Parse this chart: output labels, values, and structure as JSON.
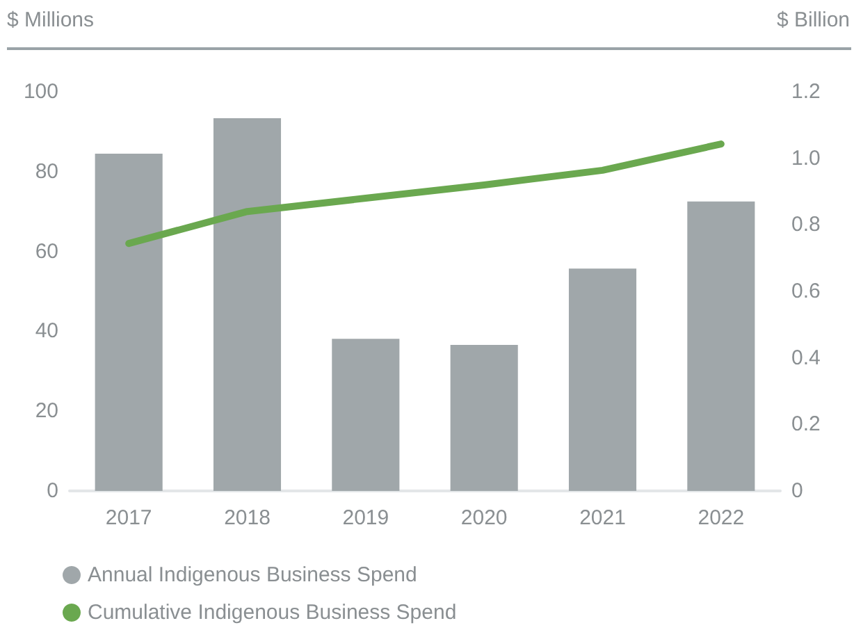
{
  "chart_data": {
    "type": "bar",
    "ylabel": "$ Millions",
    "y2label": "$ Billion",
    "categories": [
      "2017",
      "2018",
      "2019",
      "2020",
      "2021",
      "2022"
    ],
    "series": [
      {
        "name": "Annual Indigenous Business Spend",
        "color": "#a0a7aa",
        "values": [
          84.5,
          93.4,
          38.1,
          36.6,
          55.7,
          72.5
        ]
      },
      {
        "name": "Cumulative Indigenous Business Spend",
        "type": "line",
        "axis": "y2",
        "color": "#6aa84f",
        "values": [
          0.744,
          0.84,
          0.88,
          0.92,
          0.964,
          1.043
        ]
      }
    ],
    "ylim": [
      0,
      100
    ],
    "yticks": [
      0,
      20,
      40,
      60,
      80,
      100
    ],
    "y2lim": [
      0,
      1.2
    ],
    "y2ticks": [
      {
        "value": 0,
        "label": "0"
      },
      {
        "value": 0.2,
        "label": "0.2"
      },
      {
        "value": 0.4,
        "label": "0.4"
      },
      {
        "value": 0.6,
        "label": "0.6"
      },
      {
        "value": 0.8,
        "label": "0.8"
      },
      {
        "value": 1.0,
        "label": "1.0"
      },
      {
        "value": 1.2,
        "label": "1.2"
      }
    ],
    "grid": false,
    "legend": "bottom left",
    "marker": "none",
    "line_style": "solid"
  }
}
